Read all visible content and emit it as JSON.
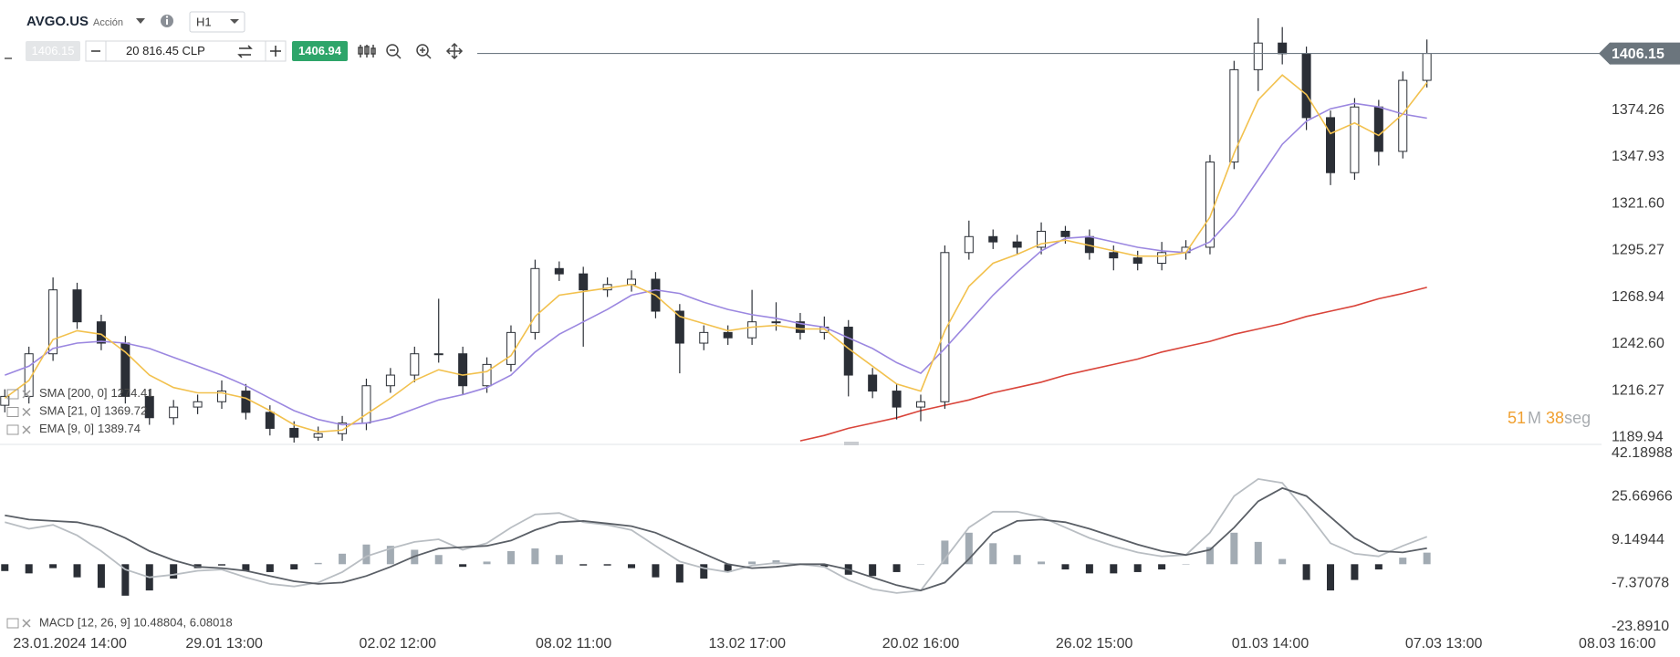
{
  "header": {
    "symbol": "AVGO.US",
    "kind": "Acción",
    "timeframe": "H1"
  },
  "toolbar": {
    "bid": "1406.15",
    "volume": "20 816.45 CLP",
    "ask": "1406.94"
  },
  "chart_data": [
    {
      "type": "candlestick",
      "open": [
        1208,
        1213,
        1237,
        1273,
        1255,
        1243,
        1213,
        1201,
        1207,
        1210,
        1216,
        1204,
        1195,
        1190,
        1192,
        1198,
        1219,
        1225,
        1237,
        1237,
        1219,
        1231,
        1249,
        1285,
        1282,
        1273,
        1276,
        1279,
        1261,
        1243,
        1249,
        1246,
        1255,
        1255,
        1249,
        1252,
        1225,
        1216,
        1207,
        1210,
        1294,
        1303,
        1300,
        1297,
        1306,
        1303,
        1294,
        1291,
        1288,
        1294,
        1297,
        1345,
        1397,
        1412,
        1406,
        1370,
        1339,
        1376,
        1351,
        1391
      ],
      "high": [
        1217,
        1241,
        1280,
        1277,
        1259,
        1247,
        1217,
        1211,
        1214,
        1222,
        1220,
        1208,
        1199,
        1196,
        1202,
        1223,
        1229,
        1241,
        1268,
        1241,
        1235,
        1253,
        1290,
        1289,
        1286,
        1280,
        1284,
        1283,
        1265,
        1253,
        1253,
        1273,
        1266,
        1260,
        1258,
        1256,
        1229,
        1220,
        1214,
        1298,
        1312,
        1307,
        1304,
        1311,
        1309,
        1307,
        1298,
        1295,
        1300,
        1301,
        1349,
        1402,
        1426,
        1421,
        1410,
        1374,
        1381,
        1380,
        1396,
        1414
      ],
      "low": [
        1204,
        1209,
        1233,
        1251,
        1239,
        1209,
        1197,
        1197,
        1203,
        1206,
        1200,
        1191,
        1187,
        1188,
        1188,
        1194,
        1215,
        1221,
        1232,
        1214,
        1215,
        1227,
        1245,
        1278,
        1241,
        1269,
        1272,
        1257,
        1226,
        1239,
        1242,
        1242,
        1250,
        1245,
        1245,
        1213,
        1212,
        1200,
        1199,
        1206,
        1290,
        1296,
        1293,
        1293,
        1299,
        1290,
        1284,
        1284,
        1284,
        1290,
        1293,
        1341,
        1385,
        1400,
        1363,
        1332,
        1335,
        1343,
        1347,
        1387
      ],
      "close": [
        1213,
        1237,
        1273,
        1255,
        1243,
        1213,
        1201,
        1207,
        1210,
        1216,
        1204,
        1195,
        1190,
        1192,
        1198,
        1219,
        1225,
        1237,
        1237,
        1219,
        1231,
        1249,
        1285,
        1282,
        1273,
        1276,
        1279,
        1261,
        1243,
        1249,
        1246,
        1255,
        1255,
        1249,
        1252,
        1225,
        1216,
        1207,
        1210,
        1294,
        1303,
        1300,
        1297,
        1306,
        1303,
        1294,
        1291,
        1288,
        1294,
        1297,
        1345,
        1397,
        1412,
        1406,
        1370,
        1339,
        1376,
        1351,
        1391,
        1406.15
      ],
      "candle_colors": {
        "up": "#ffffff",
        "down": "#2b2f36",
        "outline": "#2b2f36"
      },
      "series": [
        {
          "name": "SMA [200, 0]",
          "color": "#d9443a",
          "values": [
            null,
            null,
            null,
            null,
            null,
            null,
            null,
            null,
            null,
            null,
            null,
            null,
            null,
            null,
            null,
            null,
            null,
            null,
            null,
            null,
            null,
            null,
            null,
            null,
            null,
            null,
            null,
            null,
            null,
            null,
            null,
            null,
            null,
            1188,
            1191,
            1195,
            1198,
            1201,
            1205,
            1208,
            1211,
            1215,
            1218,
            1221,
            1225,
            1228,
            1231,
            1234,
            1238,
            1241,
            1244,
            1248,
            1251,
            1254,
            1258,
            1261,
            1264,
            1268,
            1271,
            1274.41
          ]
        },
        {
          "name": "SMA [21, 0]",
          "color": "#9b87e0",
          "values": [
            1225,
            1230,
            1240,
            1243,
            1244,
            1243,
            1240,
            1235,
            1230,
            1225,
            1219,
            1212,
            1205,
            1200,
            1197,
            1198,
            1201,
            1206,
            1211,
            1214,
            1218,
            1225,
            1238,
            1248,
            1255,
            1262,
            1270,
            1273,
            1271,
            1266,
            1262,
            1259,
            1257,
            1254,
            1252,
            1246,
            1240,
            1232,
            1226,
            1240,
            1255,
            1270,
            1283,
            1295,
            1302,
            1303,
            1300,
            1297,
            1295,
            1294,
            1300,
            1315,
            1335,
            1355,
            1368,
            1375,
            1378,
            1376,
            1372,
            1369.72
          ]
        },
        {
          "name": "EMA [9, 0]",
          "color": "#f2c14e",
          "values": [
            1212,
            1222,
            1245,
            1250,
            1248,
            1238,
            1225,
            1218,
            1215,
            1215,
            1212,
            1205,
            1197,
            1193,
            1194,
            1203,
            1212,
            1222,
            1228,
            1225,
            1227,
            1236,
            1258,
            1270,
            1272,
            1274,
            1276,
            1270,
            1258,
            1254,
            1250,
            1252,
            1253,
            1251,
            1251,
            1240,
            1230,
            1220,
            1216,
            1250,
            1275,
            1288,
            1293,
            1299,
            1301,
            1298,
            1295,
            1292,
            1292,
            1294,
            1314,
            1350,
            1380,
            1394,
            1383,
            1361,
            1367,
            1360,
            1372,
            1389.74
          ]
        }
      ],
      "ylim": [
        1187,
        1427
      ],
      "yticks": [
        1189.94,
        1216.27,
        {
          "value": 1242.6,
          "label": "1242.60"
        },
        1268.94,
        1295.27,
        {
          "value": 1321.6,
          "label": "1321.60"
        },
        1347.93,
        1374.26
      ],
      "xlim": [
        -0.2,
        69.5
      ],
      "last_price": 1406.15,
      "countdown": {
        "minutes": "51",
        "minutes_unit": "M",
        "seconds": "38",
        "seconds_unit": "seg"
      }
    },
    {
      "type": "macd",
      "legend": "MACD [12, 26, 9] 10.48804, 6.08018",
      "histogram": {
        "colors": {
          "positive": "#a2abb3",
          "negative": "#2b2f36"
        },
        "values": [
          -2.6,
          -3.5,
          -1.5,
          -5,
          -9,
          -12,
          -10,
          -5.5,
          -1.5,
          -0.5,
          -2.5,
          -3,
          -2,
          0.5,
          4,
          7.5,
          7,
          5.5,
          3.5,
          -1,
          1,
          5,
          6,
          3.5,
          -0.5,
          -0.5,
          -1.5,
          -5,
          -7,
          -5.5,
          -3,
          1,
          1.5,
          0,
          -1,
          -4,
          -4.5,
          -3,
          0,
          9,
          12,
          8,
          3.5,
          1,
          -2,
          -3.5,
          -3.5,
          -3,
          -2,
          0,
          6.5,
          12,
          8.5,
          2,
          -6,
          -10,
          -6,
          -2,
          2.5,
          4.40786
        ]
      },
      "series": [
        {
          "color": "#b9bec3",
          "values": [
            16,
            13.5,
            15,
            11,
            5,
            -2,
            -5,
            -4,
            -2.5,
            -2,
            -5,
            -7.5,
            -8.5,
            -7,
            -3,
            3,
            6,
            8.5,
            9.5,
            5.5,
            8,
            14,
            19,
            19.5,
            16,
            15,
            13,
            7,
            1,
            -1.5,
            -3,
            -0.5,
            0.5,
            0,
            -1,
            -6,
            -9.5,
            -11,
            -10,
            2,
            14,
            20,
            20,
            18,
            14,
            10,
            7,
            4.5,
            3,
            3.5,
            12,
            26,
            32.5,
            31,
            20,
            8,
            4,
            3,
            7,
            10.48804
          ]
        },
        {
          "color": "#5a5f66",
          "values": [
            18.6,
            17,
            16.5,
            16,
            14,
            10,
            5,
            1.5,
            -1,
            -1.5,
            -2.5,
            -4.5,
            -6.5,
            -7.5,
            -7,
            -4.5,
            -1,
            3,
            6,
            6.5,
            7,
            9,
            13,
            16,
            16.5,
            15.5,
            14.5,
            12,
            8,
            4,
            0,
            -1.5,
            -1,
            0,
            0,
            -2,
            -5,
            -8,
            -10,
            -7,
            2,
            12,
            16.5,
            17,
            16,
            13.5,
            10.5,
            7.5,
            5,
            3.5,
            5.5,
            14,
            24,
            29,
            26,
            18,
            10,
            5,
            4.5,
            6.08018
          ]
        }
      ],
      "ylim": [
        -23.891,
        42.18988
      ],
      "yticks": [
        42.18988,
        25.66966,
        9.14944,
        -7.37078,
        {
          "value": -23.891,
          "label": "-23.8910"
        }
      ],
      "xlim": [
        -0.2,
        69.5
      ],
      "xticks": [
        {
          "value": 2.7,
          "label": "23.01.2024 14:00"
        },
        {
          "value": 9.1,
          "label": "29.01 13:00"
        },
        {
          "value": 16.3,
          "label": "02.02 12:00"
        },
        {
          "value": 23.6,
          "label": "08.02 11:00"
        },
        {
          "value": 30.8,
          "label": "13.02 17:00"
        },
        {
          "value": 38,
          "label": "20.02 16:00"
        },
        {
          "value": 45.2,
          "label": "26.02 15:00"
        },
        {
          "value": 52.5,
          "label": "01.03 14:00"
        },
        {
          "value": 59.7,
          "label": "07.03 13:00"
        },
        {
          "value": 66.9,
          "label": "08.03 16:00"
        }
      ]
    }
  ]
}
